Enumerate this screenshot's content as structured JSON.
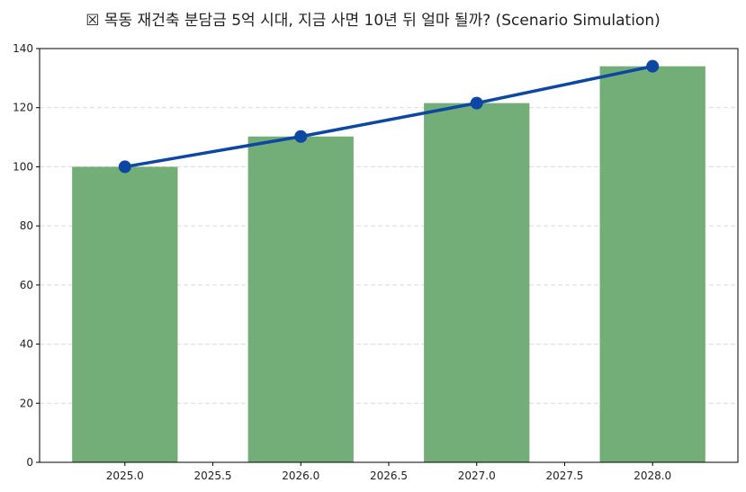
{
  "title": "☒ 목동 재건축 분담금 5억 시대, 지금 사면 10년 뒤 얼마 될까? (Scenario Simulation)",
  "colors": {
    "bar": "#73ad77",
    "line": "#0d47a1",
    "grid": "#d9d9d9",
    "axis": "#000000"
  },
  "chart_data": {
    "type": "bar",
    "title": "☒ 목동 재건축 분담금 5억 시대, 지금 사면 10년 뒤 얼마 될까? (Scenario Simulation)",
    "xlabel": "",
    "ylabel": "",
    "categories": [
      2025,
      2026,
      2027,
      2028
    ],
    "series": [
      {
        "name": "bar",
        "type": "bar",
        "values": [
          100,
          110.25,
          121.55,
          134.01
        ]
      },
      {
        "name": "line",
        "type": "line",
        "marker": "o",
        "values": [
          100,
          110.25,
          121.55,
          134.01
        ]
      }
    ],
    "xlim": [
      2024.515,
      2028.485
    ],
    "ylim": [
      0,
      140.7
    ],
    "xticks": [
      "2025.0",
      "2025.5",
      "2026.0",
      "2026.5",
      "2027.0",
      "2027.5",
      "2028.0"
    ],
    "yticks": [
      "0",
      "20",
      "40",
      "60",
      "80",
      "100",
      "120",
      "140"
    ],
    "bar_width": 0.6,
    "grid": {
      "axis": "y",
      "style": "dashed"
    },
    "legend": null
  }
}
